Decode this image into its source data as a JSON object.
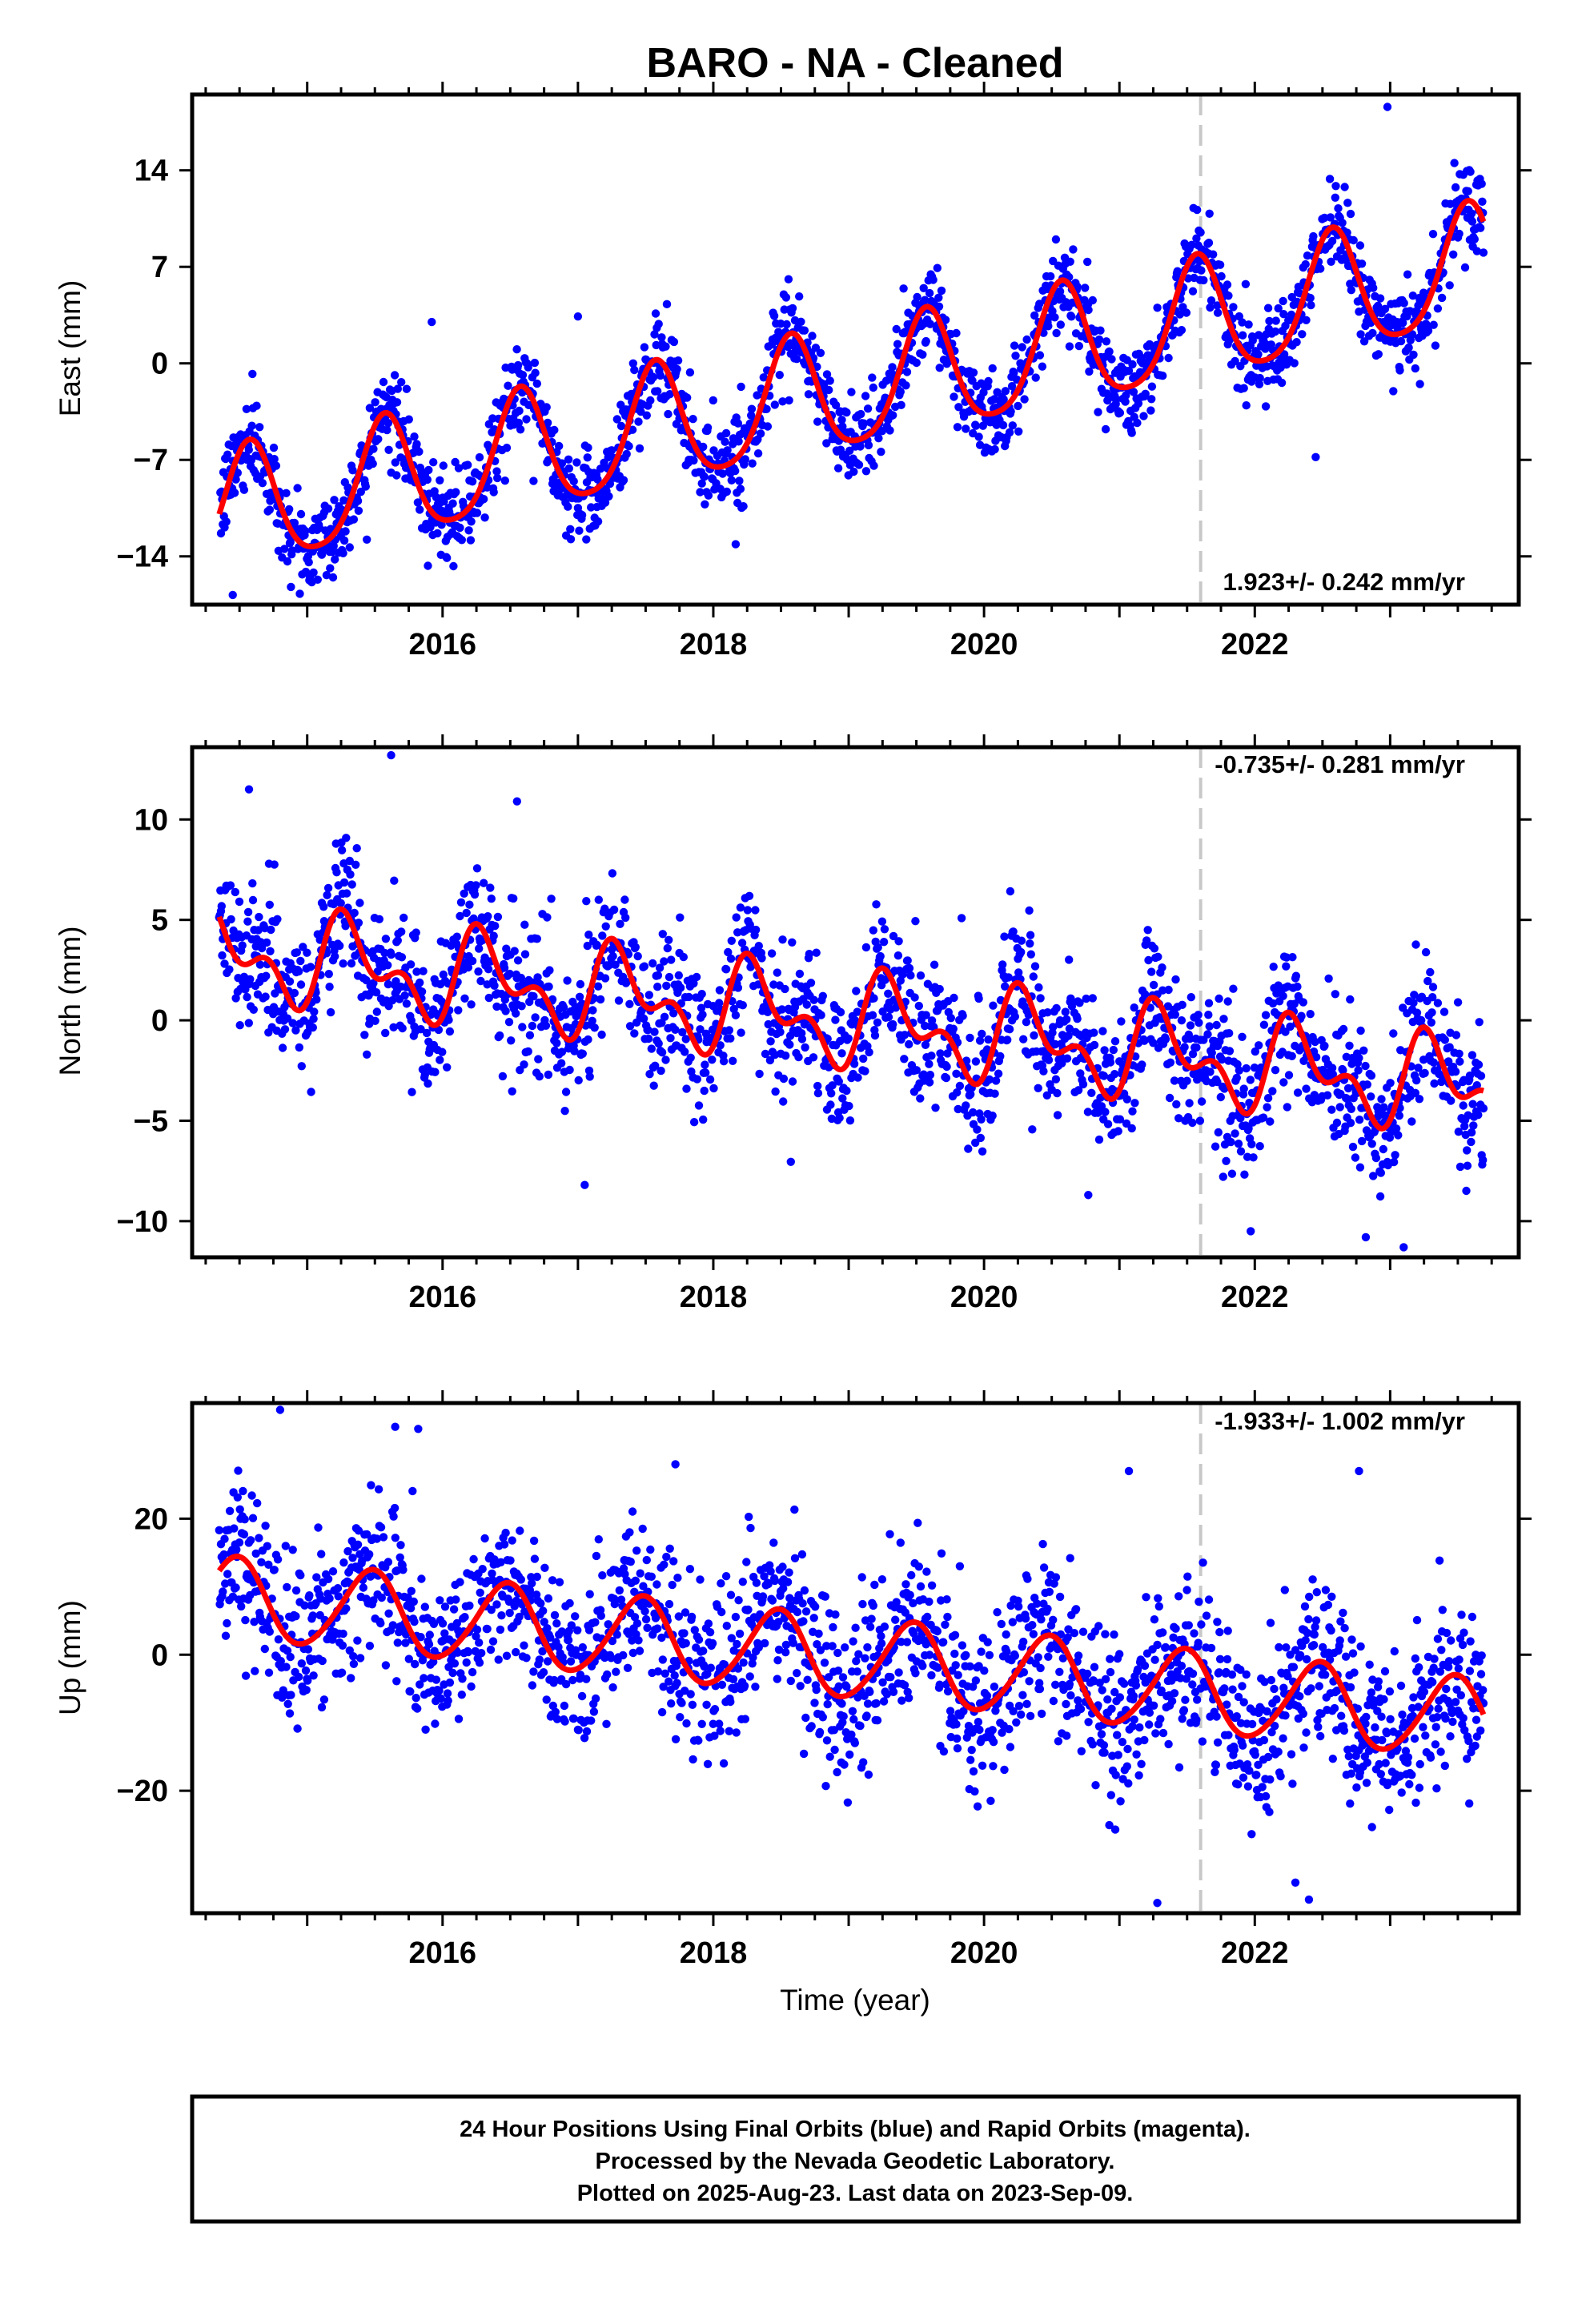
{
  "title": "BARO  - NA - Cleaned",
  "xlabel": "Time (year)",
  "footer": [
    "24 Hour Positions Using Final Orbits (blue) and Rapid Orbits (magenta).",
    "Processed by the Nevada Geodetic Laboratory.",
    "Plotted on 2025-Aug-23. Last data on 2023-Sep-09."
  ],
  "colors": {
    "points": "#0000ff",
    "model": "#ff0000",
    "event_line": "#c8c8c8",
    "frame": "#000000"
  },
  "chart_data": [
    {
      "type": "scatter",
      "name": "east",
      "ylabel": "East (mm)",
      "rate_label": "1.923+/- 0.242 mm/yr",
      "rate_position": "bottom-right",
      "xlim": [
        2014.15,
        2023.95
      ],
      "ylim": [
        -17.5,
        19.5
      ],
      "xticks": [
        2016,
        2018,
        2020,
        2022
      ],
      "xtick_labels": [
        "2016",
        "2018",
        "2020",
        "2022"
      ],
      "yticks": [
        -14,
        -7,
        0,
        7,
        14
      ],
      "ytick_labels": [
        "−14",
        "−7",
        "0",
        "7",
        "14"
      ],
      "event_line_x": 2021.6,
      "x_start": 2014.35,
      "x_end": 2023.69,
      "model": {
        "offset": -11.0,
        "rate": 1.923,
        "annual_sin": -1.9,
        "annual_cos": -3.9,
        "semi_sin": 0.6,
        "semi_cos": 0.4
      },
      "scatter_sigma": 1.6,
      "outliers": [
        {
          "x": 2015.92,
          "y": 3.0
        },
        {
          "x": 2022.45,
          "y": -6.8
        },
        {
          "x": 2022.98,
          "y": 18.6
        },
        {
          "x": 2023.22,
          "y": -1.5
        },
        {
          "x": 2014.45,
          "y": -16.8
        },
        {
          "x": 2017.0,
          "y": 3.4
        }
      ],
      "grid": false,
      "legend": "none"
    },
    {
      "type": "scatter",
      "name": "north",
      "ylabel": "North (mm)",
      "rate_label": "-0.735+/- 0.281 mm/yr",
      "rate_position": "top-right",
      "xlim": [
        2014.15,
        2023.95
      ],
      "ylim": [
        -11.8,
        13.6
      ],
      "xticks": [
        2016,
        2018,
        2020,
        2022
      ],
      "xtick_labels": [
        "2016",
        "2018",
        "2020",
        "2022"
      ],
      "yticks": [
        -10,
        -5,
        0,
        5,
        10
      ],
      "ytick_labels": [
        "−10",
        "−5",
        "0",
        "5",
        "10"
      ],
      "event_line_x": 2021.6,
      "x_start": 2014.35,
      "x_end": 2023.69,
      "model": {
        "offset": 3.4,
        "rate": -0.735,
        "annual_sin": 1.6,
        "annual_cos": -0.8,
        "semi_sin": 0.4,
        "semi_cos": -1.2
      },
      "scatter_sigma": 1.8,
      "outliers": [
        {
          "x": 2014.57,
          "y": 11.5
        },
        {
          "x": 2015.62,
          "y": 13.2
        },
        {
          "x": 2016.55,
          "y": 10.9
        },
        {
          "x": 2017.05,
          "y": -8.2
        },
        {
          "x": 2020.77,
          "y": -8.7
        },
        {
          "x": 2021.97,
          "y": -10.5
        },
        {
          "x": 2022.82,
          "y": -10.8
        },
        {
          "x": 2023.1,
          "y": -11.3
        }
      ],
      "grid": false,
      "legend": "none"
    },
    {
      "type": "scatter",
      "name": "up",
      "ylabel": "Up (mm)",
      "rate_label": "-1.933+/- 1.002 mm/yr",
      "rate_position": "top-right",
      "xlim": [
        2014.15,
        2023.95
      ],
      "ylim": [
        -38,
        37
      ],
      "xticks": [
        2016,
        2018,
        2020,
        2022
      ],
      "xtick_labels": [
        "2016",
        "2018",
        "2020",
        "2022"
      ],
      "yticks": [
        -20,
        0,
        20
      ],
      "ytick_labels": [
        "−20",
        "0",
        "20"
      ],
      "event_line_x": 2021.6,
      "x_start": 2014.35,
      "x_end": 2023.69,
      "model": {
        "offset": 8.4,
        "rate": -1.933,
        "annual_sin": 1.2,
        "annual_cos": -5.8,
        "semi_sin": 0.3,
        "semi_cos": 0.5
      },
      "scatter_sigma": 6.0,
      "outliers": [
        {
          "x": 2014.8,
          "y": 36.0
        },
        {
          "x": 2015.65,
          "y": 33.5
        },
        {
          "x": 2015.82,
          "y": 33.2
        },
        {
          "x": 2017.72,
          "y": 28.0
        },
        {
          "x": 2021.07,
          "y": 27.0
        },
        {
          "x": 2022.77,
          "y": 27.0
        },
        {
          "x": 2021.28,
          "y": -36.5
        },
        {
          "x": 2022.4,
          "y": -36.0
        },
        {
          "x": 2022.3,
          "y": -33.5
        }
      ],
      "grid": false,
      "legend": "none"
    }
  ]
}
